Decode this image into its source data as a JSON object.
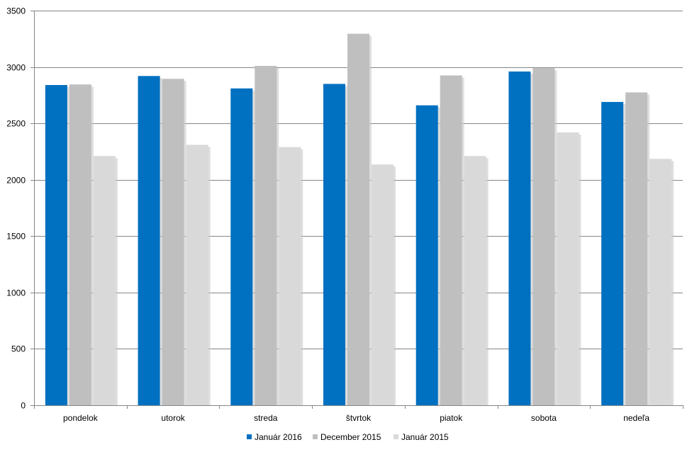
{
  "chart_data": {
    "type": "bar",
    "categories": [
      "pondelok",
      "utorok",
      "streda",
      "štvrtok",
      "piatok",
      "sobota",
      "nedeľa"
    ],
    "series": [
      {
        "name": "Január 2016",
        "color": "#0070C0",
        "values": [
          2840,
          2920,
          2810,
          2850,
          2660,
          2960,
          2690
        ]
      },
      {
        "name": "December 2015",
        "color": "#BFBFBF",
        "values": [
          2845,
          2895,
          3010,
          3295,
          2925,
          2990,
          2775
        ]
      },
      {
        "name": "Január 2015",
        "color": "#D9D9D9",
        "values": [
          2210,
          2310,
          2290,
          2135,
          2210,
          2420,
          2185
        ]
      }
    ],
    "yticks": [
      "0",
      "500",
      "1000",
      "1500",
      "2000",
      "2500",
      "3000",
      "3500"
    ],
    "ylim": [
      0,
      3500
    ],
    "grid": true,
    "legend_position": "bottom"
  }
}
